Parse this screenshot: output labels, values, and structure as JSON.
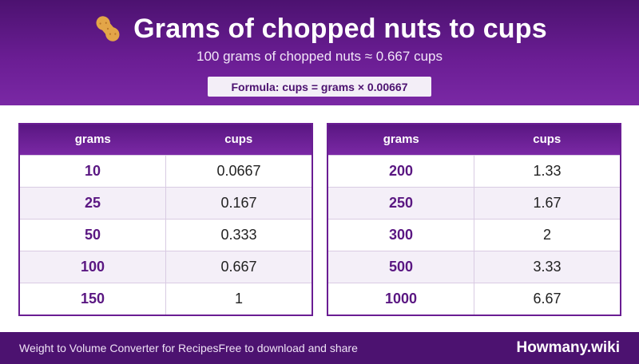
{
  "header": {
    "icon": "peanut-icon",
    "title": "Grams of chopped nuts to cups",
    "subtitle": "100 grams of chopped nuts ≈ 0.667 cups",
    "formula": "Formula: cups = grams × 0.00667"
  },
  "tables": {
    "left": {
      "headers": [
        "grams",
        "cups"
      ],
      "rows": [
        {
          "grams": "10",
          "cups": "0.0667"
        },
        {
          "grams": "25",
          "cups": "0.167"
        },
        {
          "grams": "50",
          "cups": "0.333"
        },
        {
          "grams": "100",
          "cups": "0.667"
        },
        {
          "grams": "150",
          "cups": "1"
        }
      ]
    },
    "right": {
      "headers": [
        "grams",
        "cups"
      ],
      "rows": [
        {
          "grams": "200",
          "cups": "1.33"
        },
        {
          "grams": "250",
          "cups": "1.67"
        },
        {
          "grams": "300",
          "cups": "2"
        },
        {
          "grams": "500",
          "cups": "3.33"
        },
        {
          "grams": "1000",
          "cups": "6.67"
        }
      ]
    }
  },
  "footer": {
    "site_name": "Weight to Volume Converter for Recipes",
    "tagline": "Free to download and share",
    "brand": "Howmany.wiki"
  },
  "colors": {
    "header_purple": "#6a1d93",
    "dark_purple": "#4c1270",
    "row_alt": "#f4eff8"
  }
}
